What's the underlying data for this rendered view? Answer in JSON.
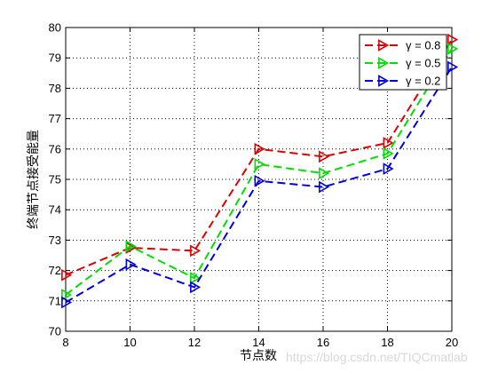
{
  "chart_data": {
    "type": "line",
    "xlabel": "节点数",
    "ylabel": "终端节点接受能量",
    "x": [
      8,
      10,
      12,
      14,
      16,
      18,
      20
    ],
    "xlim": [
      8,
      20
    ],
    "ylim": [
      70,
      80
    ],
    "xticks": [
      "8",
      "10",
      "12",
      "14",
      "16",
      "18",
      "20"
    ],
    "yticks": [
      "70",
      "71",
      "72",
      "73",
      "74",
      "75",
      "76",
      "77",
      "78",
      "79",
      "80"
    ],
    "grid": true,
    "legend_position": "top-right",
    "series": [
      {
        "name": "γ = 0.8",
        "color": "#dd0000",
        "values": [
          71.85,
          72.75,
          72.65,
          76.0,
          75.75,
          76.2,
          79.6
        ]
      },
      {
        "name": "γ = 0.5",
        "color": "#00dd00",
        "values": [
          71.2,
          72.8,
          71.75,
          75.5,
          75.2,
          75.85,
          79.3
        ]
      },
      {
        "name": "γ = 0.2",
        "color": "#0000dd",
        "values": [
          70.95,
          72.2,
          71.45,
          74.95,
          74.75,
          75.35,
          78.7
        ]
      }
    ]
  },
  "watermark": "https://blog.csdn.net/TIQCmatlab"
}
